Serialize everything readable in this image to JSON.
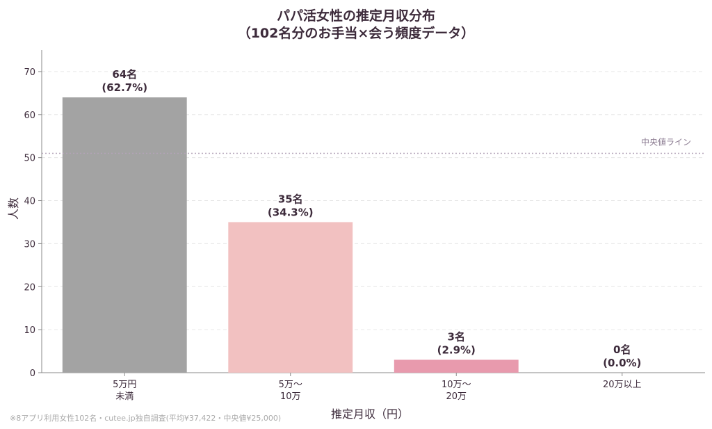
{
  "chart_data": {
    "type": "bar",
    "title": [
      "パパ活女性の推定月収分布",
      "（102名分のお手当×会う頻度データ）"
    ],
    "xlabel": "推定月収（円）",
    "ylabel": "人数",
    "ylim": [
      0,
      75
    ],
    "yticks": [
      0,
      10,
      20,
      30,
      40,
      50,
      60,
      70
    ],
    "categories": [
      [
        "5万円",
        "未満"
      ],
      [
        "5万〜",
        "10万"
      ],
      [
        "10万〜",
        "20万"
      ],
      [
        "20万以上"
      ]
    ],
    "values": [
      64,
      35,
      3,
      0
    ],
    "data_labels": [
      [
        "64名",
        "(62.7%)"
      ],
      [
        "35名",
        "(34.3%)"
      ],
      [
        "3名",
        "(2.9%)"
      ],
      [
        "0名",
        "(0.0%)"
      ]
    ],
    "colors": [
      "#a3a3a3",
      "#f2c1c1",
      "#e89aad",
      "#e89aad"
    ],
    "median_line": {
      "value": 51,
      "label": "中央値ライン",
      "color": "#b3a3b8"
    },
    "grid": true
  },
  "footnote": "※8アプリ利用女性102名・cutee.jp独自調査(平均¥37,422・中央値¥25,000)"
}
